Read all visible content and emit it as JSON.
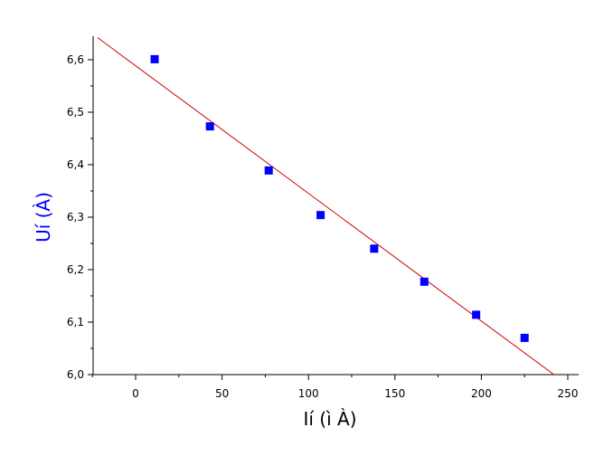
{
  "chart_data": {
    "type": "scatter",
    "title": "",
    "xlabel": "Ií  (ì À)",
    "ylabel": "Uí (À)",
    "xlim": [
      -25,
      250
    ],
    "ylim": [
      6.0,
      6.6
    ],
    "xticks": [
      0,
      50,
      100,
      150,
      200,
      250
    ],
    "xtick_labels": [
      "0",
      "50",
      "100",
      "150",
      "200",
      "250"
    ],
    "yticks": [
      6.0,
      6.1,
      6.2,
      6.3,
      6.4,
      6.5,
      6.6
    ],
    "ytick_labels": [
      "6,0",
      "6,1",
      "6,2",
      "6,3",
      "6,4",
      "6,5",
      "6,6"
    ],
    "grid": false,
    "legend": "none",
    "series": [
      {
        "marker": "square",
        "color": "#0000ff",
        "points": [
          {
            "x": 11,
            "y": 6.601
          },
          {
            "x": 43,
            "y": 6.473
          },
          {
            "x": 77,
            "y": 6.389
          },
          {
            "x": 107,
            "y": 6.304
          },
          {
            "x": 138,
            "y": 6.24
          },
          {
            "x": 167,
            "y": 6.177
          },
          {
            "x": 197,
            "y": 6.114
          },
          {
            "x": 225,
            "y": 6.07
          }
        ]
      }
    ],
    "fit_line": {
      "color": "#cc0000",
      "points": [
        {
          "x": -22,
          "y": 6.642
        },
        {
          "x": 242,
          "y": 6.0
        }
      ]
    },
    "colors": {
      "ylabel": "#0000ff",
      "xlabel": "#000000"
    }
  }
}
